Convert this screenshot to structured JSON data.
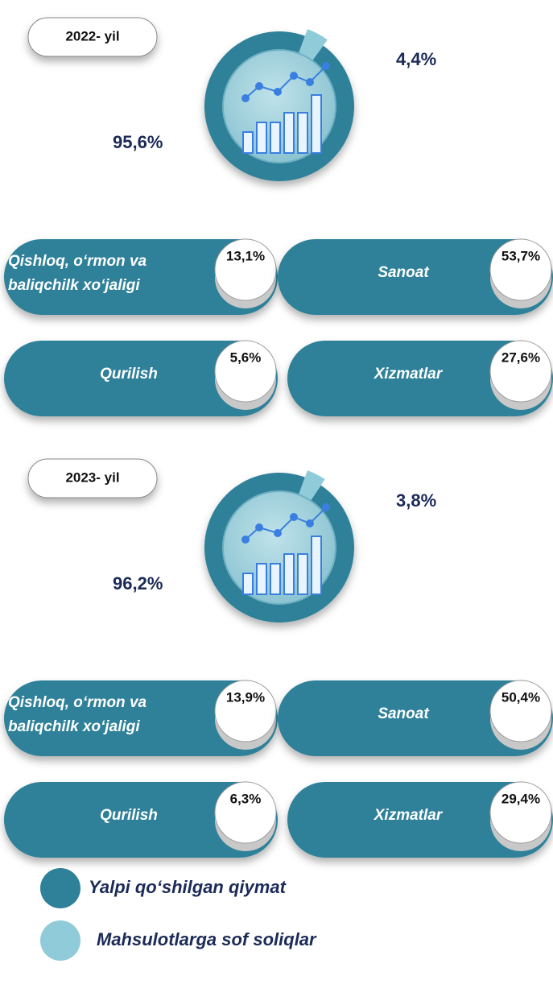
{
  "legend": {
    "labels": [
      "Yalpi qo‘shilgan qiymat",
      "Mahsulotlarga sof soliqlar"
    ],
    "colors": [
      "#2e8199",
      "#8fcbd9"
    ]
  },
  "chart_data": [
    {
      "type": "pie",
      "title": "2022- yil",
      "values": [
        95.6,
        4.4
      ],
      "value_labels": [
        "95,6%",
        "4,4%"
      ],
      "breakdown": {
        "categories": [
          [
            "Qishloq, o‘rmon va",
            "baliqchilk xo‘jaligi"
          ],
          "Sanoat",
          "Qurilish",
          "Xizmatlar"
        ],
        "values": [
          13.1,
          53.7,
          5.6,
          27.6
        ],
        "value_labels": [
          "13,1%",
          "53,7%",
          "5,6%",
          "27,6%"
        ]
      }
    },
    {
      "type": "pie",
      "title": "2023- yil",
      "values": [
        96.2,
        3.8
      ],
      "value_labels": [
        "96,2%",
        "3,8%"
      ],
      "breakdown": {
        "categories": [
          [
            "Qishloq, o‘rmon va",
            "baliqchilk xo‘jaligi"
          ],
          "Sanoat",
          "Qurilish",
          "Xizmatlar"
        ],
        "values": [
          13.9,
          50.4,
          6.3,
          29.4
        ],
        "value_labels": [
          "13,9%",
          "50,4%",
          "6,3%",
          "29,4%"
        ]
      }
    }
  ]
}
